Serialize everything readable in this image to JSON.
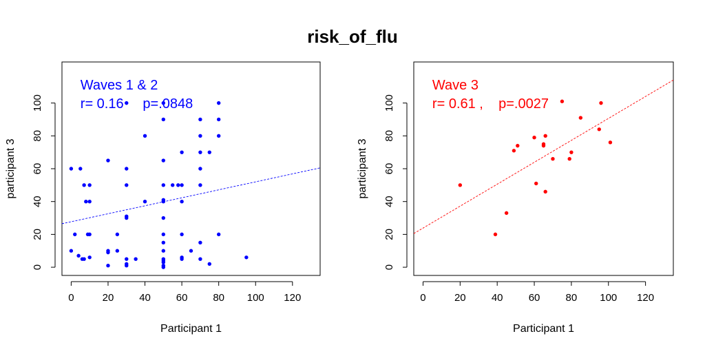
{
  "figure_title": "risk_of_flu",
  "chart_data": [
    {
      "type": "scatter",
      "panel": "left",
      "title_lines": [
        "Waves 1 & 2",
        "r= 0.16     p=.0848"
      ],
      "xlabel": "Participant 1",
      "ylabel": "participant 3",
      "xlim": [
        -5,
        135
      ],
      "ylim": [
        -5,
        125
      ],
      "xticks": [
        0,
        20,
        40,
        60,
        80,
        100,
        120
      ],
      "yticks": [
        0,
        20,
        40,
        60,
        80,
        100
      ],
      "color": "#0000ff",
      "fit_line": {
        "x": [
          -5,
          135
        ],
        "y": [
          26.5,
          60.5
        ]
      },
      "points": {
        "x": [
          0,
          0,
          2,
          4,
          5,
          6,
          7,
          7,
          8,
          9,
          10,
          10,
          10,
          10,
          20,
          20,
          20,
          20,
          25,
          25,
          30,
          30,
          30,
          30,
          30,
          30,
          30,
          30,
          35,
          40,
          40,
          50,
          50,
          50,
          50,
          50,
          50,
          50,
          50,
          50,
          50,
          50,
          50,
          50,
          50,
          50,
          55,
          58,
          60,
          60,
          60,
          60,
          60,
          60,
          65,
          70,
          70,
          70,
          70,
          70,
          70,
          70,
          75,
          75,
          80,
          80,
          80,
          80,
          95
        ],
        "y": [
          10,
          60,
          20,
          7,
          60,
          5,
          50,
          5,
          40,
          20,
          50,
          40,
          20,
          6,
          65,
          10,
          9,
          1,
          20,
          10,
          100,
          60,
          50,
          30,
          31,
          5,
          2,
          1,
          5,
          80,
          40,
          100,
          90,
          65,
          50,
          40,
          30,
          20,
          15,
          10,
          5,
          4,
          3,
          1,
          0,
          41,
          50,
          50,
          70,
          50,
          40,
          20,
          5,
          6,
          10,
          90,
          80,
          60,
          50,
          15,
          5,
          70,
          70,
          2,
          100,
          90,
          80,
          20,
          6
        ]
      }
    },
    {
      "type": "scatter",
      "panel": "right",
      "title_lines": [
        "Wave 3",
        "r= 0.61 ,    p=.0027"
      ],
      "xlabel": "Participant 1",
      "ylabel": "participant 3",
      "xlim": [
        -5,
        135
      ],
      "ylim": [
        -5,
        125
      ],
      "xticks": [
        0,
        20,
        40,
        60,
        80,
        100,
        120
      ],
      "yticks": [
        0,
        20,
        40,
        60,
        80,
        100
      ],
      "color": "#ff0000",
      "fit_line": {
        "x": [
          -5,
          135
        ],
        "y": [
          20.5,
          114
        ]
      },
      "points": {
        "x": [
          20,
          39,
          45,
          49,
          51,
          60,
          61,
          65,
          65,
          66,
          66,
          70,
          75,
          79,
          80,
          85,
          95,
          96,
          101
        ],
        "y": [
          50,
          20,
          33,
          71,
          74,
          79,
          51,
          74,
          75,
          80,
          46,
          66,
          101,
          66,
          70,
          91,
          84,
          100,
          76
        ]
      }
    }
  ]
}
